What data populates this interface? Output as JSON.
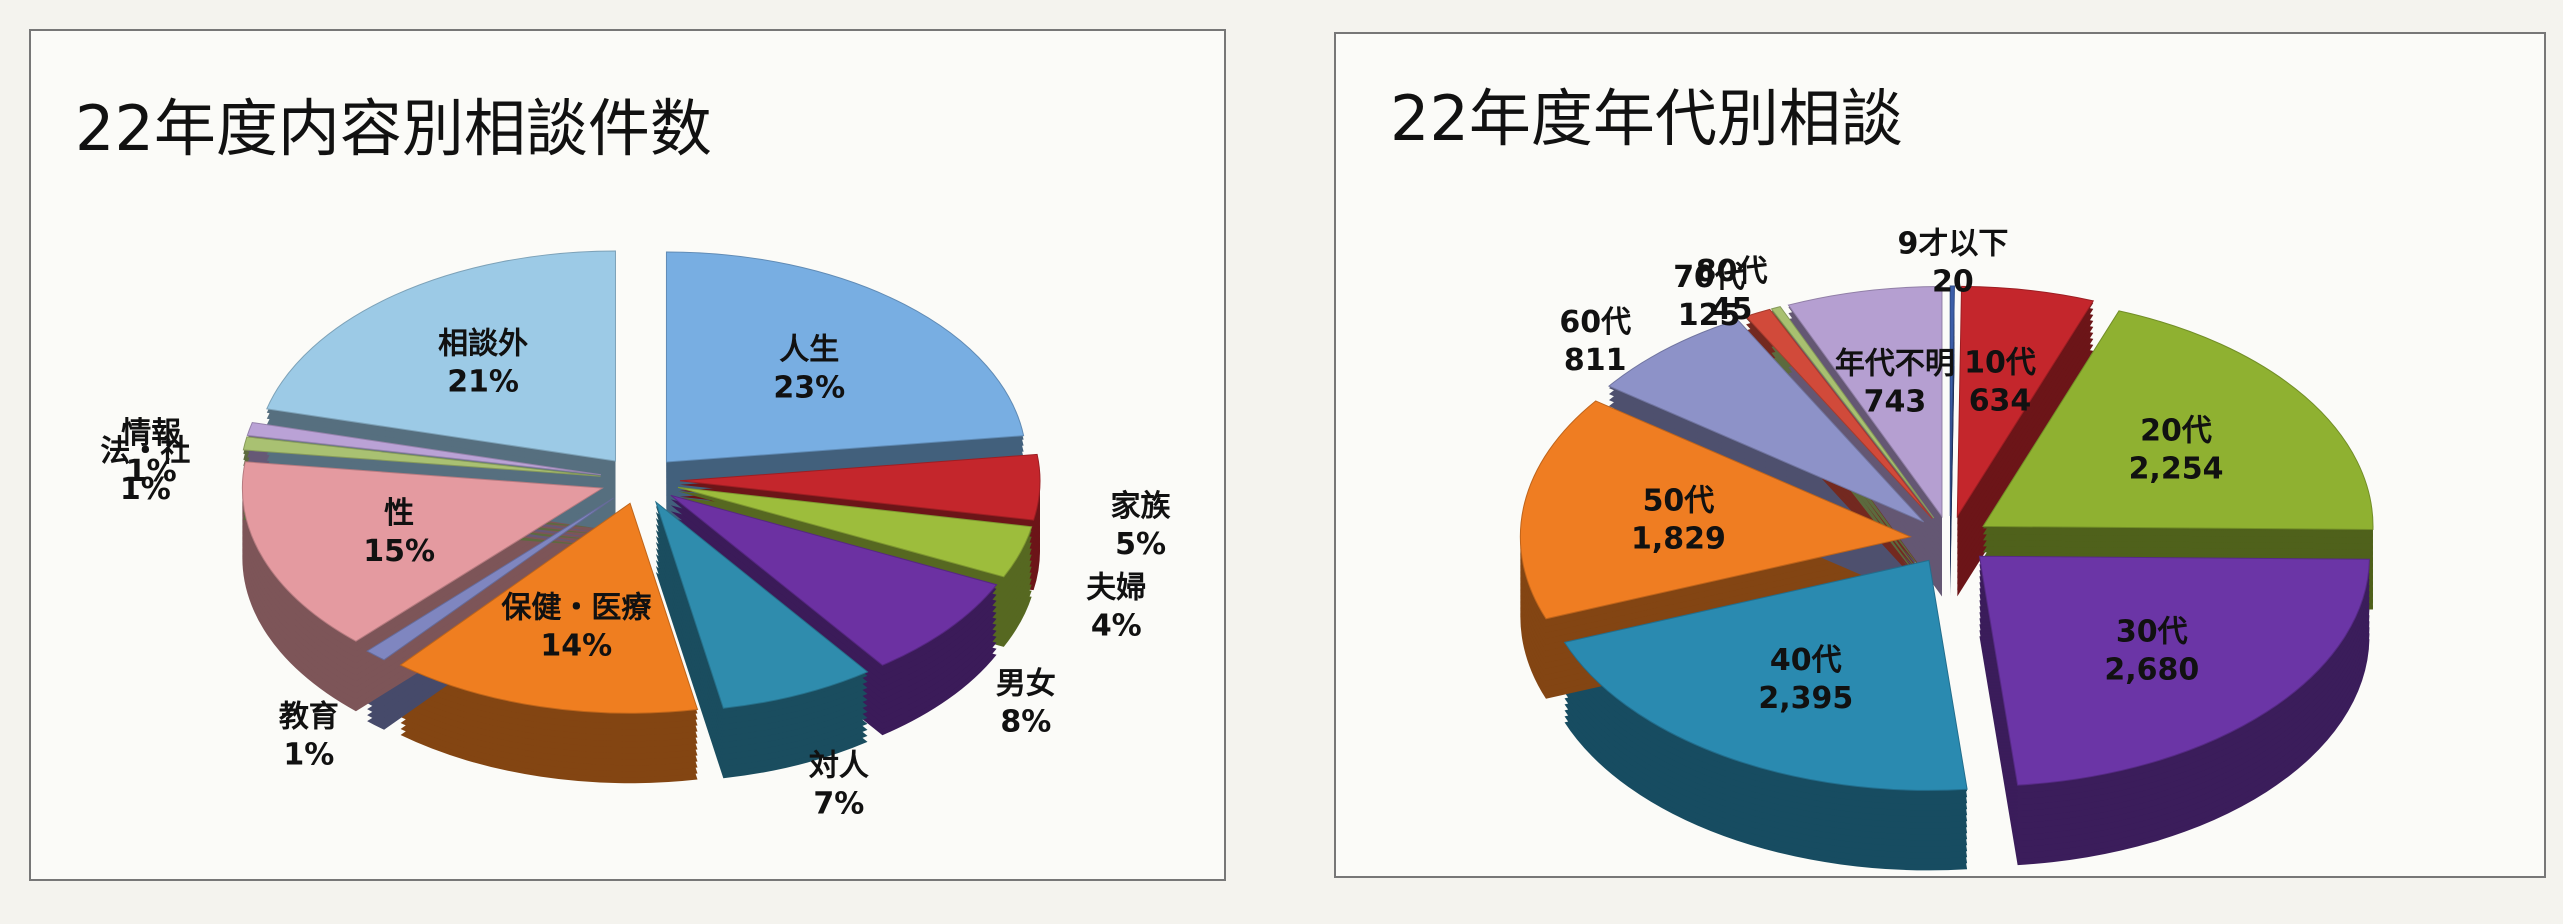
{
  "chart_data": [
    {
      "type": "pie",
      "title": "22年度内容別相談件数",
      "categories": [
        "人生",
        "家族",
        "夫婦",
        "男女",
        "対人",
        "保健・医療",
        "教育",
        "性",
        "法・社",
        "情報",
        "相談外"
      ],
      "values": [
        23,
        5,
        4,
        8,
        7,
        14,
        1,
        15,
        1,
        1,
        21
      ],
      "value_labels": [
        "23%",
        "5%",
        "4%",
        "8%",
        "7%",
        "14%",
        "1%",
        "15%",
        "1%",
        "1%",
        "21%"
      ],
      "colors": [
        "#78aee2",
        "#c4262c",
        "#9dbd3c",
        "#6c31a2",
        "#2f8cad",
        "#ef7e20",
        "#7f86c0",
        "#e49aa0",
        "#a9c172",
        "#baa2d6",
        "#9ccae6"
      ]
    },
    {
      "type": "pie",
      "title": "22年度年代別相談",
      "categories": [
        "9才以下",
        "10代",
        "20代",
        "30代",
        "40代",
        "50代",
        "60代",
        "70代",
        "80代",
        "年代不明"
      ],
      "values": [
        20,
        634,
        2254,
        2680,
        2395,
        1829,
        811,
        125,
        45,
        743
      ],
      "value_labels": [
        "20",
        "634",
        "2,254",
        "2,680",
        "2,395",
        "1,829",
        "811",
        "125",
        "45",
        "743"
      ],
      "colors": [
        "#3b5ea8",
        "#c4262c",
        "#8fb131",
        "#6b35a6",
        "#2a8ab0",
        "#ef7d22",
        "#8d92c8",
        "#d14a3a",
        "#a8c070",
        "#b59fd1"
      ]
    }
  ]
}
